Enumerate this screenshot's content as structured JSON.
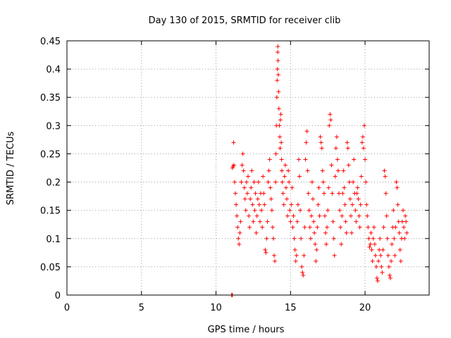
{
  "chart_data": {
    "type": "scatter",
    "title": "Day 130 of 2015, SRMTID for receiver clib",
    "xlabel": "GPS time / hours",
    "ylabel": "SRMTID / TECUs",
    "xlim": [
      0,
      24.3
    ],
    "ylim": [
      0,
      0.45
    ],
    "xticks": [
      0,
      5,
      10,
      15,
      20
    ],
    "yticks": [
      0,
      0.05,
      0.1,
      0.15,
      0.2,
      0.25,
      0.3,
      0.35,
      0.4,
      0.45
    ],
    "ytick_labels": [
      "0",
      "0.05",
      "0.1",
      "0.15",
      "0.2",
      "0.25",
      "0.3",
      "0.35",
      "0.4",
      "0.45"
    ],
    "grid": true,
    "marker": "plus",
    "color": "#ff0000",
    "series": [
      {
        "points": [
          [
            11.05,
            0.0
          ],
          [
            11.08,
            0.0
          ],
          [
            11.1,
            0.0
          ],
          [
            11.1,
            0.225
          ],
          [
            11.15,
            0.228
          ],
          [
            11.2,
            0.23
          ],
          [
            11.18,
            0.27
          ],
          [
            11.25,
            0.2
          ],
          [
            11.3,
            0.18
          ],
          [
            11.35,
            0.16
          ],
          [
            11.4,
            0.14
          ],
          [
            11.45,
            0.12
          ],
          [
            11.5,
            0.1
          ],
          [
            11.55,
            0.09
          ],
          [
            11.6,
            0.11
          ],
          [
            11.65,
            0.13
          ],
          [
            11.7,
            0.2
          ],
          [
            11.75,
            0.23
          ],
          [
            11.8,
            0.25
          ],
          [
            11.85,
            0.22
          ],
          [
            11.9,
            0.19
          ],
          [
            11.95,
            0.17
          ],
          [
            12.0,
            0.15
          ],
          [
            12.05,
            0.2
          ],
          [
            12.1,
            0.18
          ],
          [
            12.15,
            0.21
          ],
          [
            12.2,
            0.14
          ],
          [
            12.25,
            0.12
          ],
          [
            12.3,
            0.17
          ],
          [
            12.35,
            0.19
          ],
          [
            12.4,
            0.22
          ],
          [
            12.45,
            0.16
          ],
          [
            12.5,
            0.13
          ],
          [
            12.55,
            0.2
          ],
          [
            12.6,
            0.15
          ],
          [
            12.65,
            0.18
          ],
          [
            12.7,
            0.11
          ],
          [
            12.75,
            0.14
          ],
          [
            12.8,
            0.17
          ],
          [
            12.85,
            0.2
          ],
          [
            12.9,
            0.16
          ],
          [
            12.95,
            0.13
          ],
          [
            13.0,
            0.18
          ],
          [
            13.05,
            0.15
          ],
          [
            13.1,
            0.12
          ],
          [
            13.15,
            0.21
          ],
          [
            13.2,
            0.18
          ],
          [
            13.25,
            0.16
          ],
          [
            13.3,
            0.08
          ],
          [
            13.35,
            0.075
          ],
          [
            13.4,
            0.1
          ],
          [
            13.45,
            0.13
          ],
          [
            13.5,
            0.2
          ],
          [
            13.55,
            0.22
          ],
          [
            13.6,
            0.24
          ],
          [
            13.65,
            0.19
          ],
          [
            13.7,
            0.17
          ],
          [
            13.75,
            0.15
          ],
          [
            13.8,
            0.12
          ],
          [
            13.85,
            0.1
          ],
          [
            13.9,
            0.07
          ],
          [
            13.95,
            0.06
          ],
          [
            14.0,
            0.2
          ],
          [
            14.02,
            0.25
          ],
          [
            14.05,
            0.3
          ],
          [
            14.08,
            0.35
          ],
          [
            14.1,
            0.38
          ],
          [
            14.12,
            0.4
          ],
          [
            14.14,
            0.43
          ],
          [
            14.15,
            0.44
          ],
          [
            14.16,
            0.415
          ],
          [
            14.18,
            0.39
          ],
          [
            14.2,
            0.36
          ],
          [
            14.22,
            0.33
          ],
          [
            14.25,
            0.3
          ],
          [
            14.28,
            0.28
          ],
          [
            14.3,
            0.26
          ],
          [
            14.32,
            0.31
          ],
          [
            14.35,
            0.32
          ],
          [
            14.38,
            0.27
          ],
          [
            14.4,
            0.24
          ],
          [
            14.42,
            0.22
          ],
          [
            14.45,
            0.2
          ],
          [
            14.5,
            0.18
          ],
          [
            14.55,
            0.16
          ],
          [
            14.6,
            0.21
          ],
          [
            14.65,
            0.23
          ],
          [
            14.7,
            0.19
          ],
          [
            14.75,
            0.17
          ],
          [
            14.8,
            0.14
          ],
          [
            14.85,
            0.22
          ],
          [
            14.9,
            0.2
          ],
          [
            14.95,
            0.15
          ],
          [
            15.0,
            0.13
          ],
          [
            15.05,
            0.16
          ],
          [
            15.1,
            0.19
          ],
          [
            15.15,
            0.12
          ],
          [
            15.2,
            0.14
          ],
          [
            15.25,
            0.1
          ],
          [
            15.3,
            0.08
          ],
          [
            15.35,
            0.06
          ],
          [
            15.4,
            0.07
          ],
          [
            15.45,
            0.13
          ],
          [
            15.5,
            0.16
          ],
          [
            15.55,
            0.24
          ],
          [
            15.6,
            0.21
          ],
          [
            15.65,
            0.15
          ],
          [
            15.7,
            0.1
          ],
          [
            15.75,
            0.05
          ],
          [
            15.8,
            0.04
          ],
          [
            15.85,
            0.035
          ],
          [
            15.9,
            0.07
          ],
          [
            15.95,
            0.12
          ],
          [
            16.0,
            0.24
          ],
          [
            16.05,
            0.27
          ],
          [
            16.1,
            0.29
          ],
          [
            16.15,
            0.22
          ],
          [
            16.2,
            0.18
          ],
          [
            16.25,
            0.15
          ],
          [
            16.3,
            0.12
          ],
          [
            16.35,
            0.1
          ],
          [
            16.4,
            0.14
          ],
          [
            16.45,
            0.2
          ],
          [
            16.5,
            0.17
          ],
          [
            16.55,
            0.13
          ],
          [
            16.6,
            0.11
          ],
          [
            16.65,
            0.09
          ],
          [
            16.7,
            0.06
          ],
          [
            16.75,
            0.08
          ],
          [
            16.8,
            0.12
          ],
          [
            16.85,
            0.16
          ],
          [
            16.9,
            0.19
          ],
          [
            16.95,
            0.14
          ],
          [
            17.0,
            0.28
          ],
          [
            17.05,
            0.27
          ],
          [
            17.1,
            0.26
          ],
          [
            17.15,
            0.22
          ],
          [
            17.2,
            0.2
          ],
          [
            17.25,
            0.18
          ],
          [
            17.3,
            0.14
          ],
          [
            17.35,
            0.11
          ],
          [
            17.4,
            0.09
          ],
          [
            17.45,
            0.12
          ],
          [
            17.5,
            0.15
          ],
          [
            17.55,
            0.19
          ],
          [
            17.6,
            0.3
          ],
          [
            17.65,
            0.32
          ],
          [
            17.7,
            0.31
          ],
          [
            17.75,
            0.23
          ],
          [
            17.8,
            0.18
          ],
          [
            17.85,
            0.13
          ],
          [
            17.9,
            0.1
          ],
          [
            17.95,
            0.07
          ],
          [
            18.0,
            0.21
          ],
          [
            18.05,
            0.26
          ],
          [
            18.1,
            0.28
          ],
          [
            18.15,
            0.24
          ],
          [
            18.2,
            0.22
          ],
          [
            18.25,
            0.18
          ],
          [
            18.3,
            0.15
          ],
          [
            18.35,
            0.12
          ],
          [
            18.4,
            0.09
          ],
          [
            18.45,
            0.14
          ],
          [
            18.5,
            0.18
          ],
          [
            18.55,
            0.22
          ],
          [
            18.6,
            0.19
          ],
          [
            18.65,
            0.16
          ],
          [
            18.7,
            0.13
          ],
          [
            18.75,
            0.11
          ],
          [
            18.8,
            0.27
          ],
          [
            18.85,
            0.26
          ],
          [
            18.9,
            0.23
          ],
          [
            18.95,
            0.2
          ],
          [
            19.0,
            0.17
          ],
          [
            19.05,
            0.14
          ],
          [
            19.1,
            0.11
          ],
          [
            19.15,
            0.16
          ],
          [
            19.2,
            0.2
          ],
          [
            19.25,
            0.24
          ],
          [
            19.3,
            0.18
          ],
          [
            19.35,
            0.15
          ],
          [
            19.4,
            0.13
          ],
          [
            19.45,
            0.18
          ],
          [
            19.5,
            0.19
          ],
          [
            19.55,
            0.17
          ],
          [
            19.6,
            0.14
          ],
          [
            19.65,
            0.12
          ],
          [
            19.7,
            0.16
          ],
          [
            19.75,
            0.21
          ],
          [
            19.8,
            0.27
          ],
          [
            19.85,
            0.28
          ],
          [
            19.9,
            0.26
          ],
          [
            19.95,
            0.3
          ],
          [
            20.0,
            0.24
          ],
          [
            20.05,
            0.2
          ],
          [
            20.1,
            0.16
          ],
          [
            20.15,
            0.14
          ],
          [
            20.2,
            0.12
          ],
          [
            20.25,
            0.1
          ],
          [
            20.3,
            0.085
          ],
          [
            20.35,
            0.09
          ],
          [
            20.4,
            0.11
          ],
          [
            20.45,
            0.08
          ],
          [
            20.5,
            0.06
          ],
          [
            20.55,
            0.1
          ],
          [
            20.6,
            0.12
          ],
          [
            20.65,
            0.09
          ],
          [
            20.7,
            0.07
          ],
          [
            20.75,
            0.05
          ],
          [
            20.8,
            0.03
          ],
          [
            20.85,
            0.025
          ],
          [
            20.9,
            0.06
          ],
          [
            20.95,
            0.08
          ],
          [
            21.0,
            0.1
          ],
          [
            21.05,
            0.07
          ],
          [
            21.1,
            0.05
          ],
          [
            21.15,
            0.04
          ],
          [
            21.2,
            0.08
          ],
          [
            21.25,
            0.12
          ],
          [
            21.3,
            0.22
          ],
          [
            21.35,
            0.21
          ],
          [
            21.4,
            0.18
          ],
          [
            21.45,
            0.14
          ],
          [
            21.5,
            0.1
          ],
          [
            21.55,
            0.07
          ],
          [
            21.6,
            0.05
          ],
          [
            21.65,
            0.035
          ],
          [
            21.7,
            0.03
          ],
          [
            21.75,
            0.06
          ],
          [
            21.8,
            0.09
          ],
          [
            21.85,
            0.12
          ],
          [
            21.9,
            0.15
          ],
          [
            21.95,
            0.1
          ],
          [
            22.0,
            0.07
          ],
          [
            22.05,
            0.12
          ],
          [
            22.1,
            0.2
          ],
          [
            22.15,
            0.19
          ],
          [
            22.2,
            0.16
          ],
          [
            22.25,
            0.13
          ],
          [
            22.3,
            0.11
          ],
          [
            22.35,
            0.08
          ],
          [
            22.4,
            0.06
          ],
          [
            22.45,
            0.1
          ],
          [
            22.5,
            0.13
          ],
          [
            22.55,
            0.15
          ],
          [
            22.6,
            0.12
          ],
          [
            22.65,
            0.1
          ],
          [
            22.7,
            0.14
          ],
          [
            22.75,
            0.13
          ],
          [
            22.8,
            0.11
          ]
        ]
      }
    ]
  }
}
